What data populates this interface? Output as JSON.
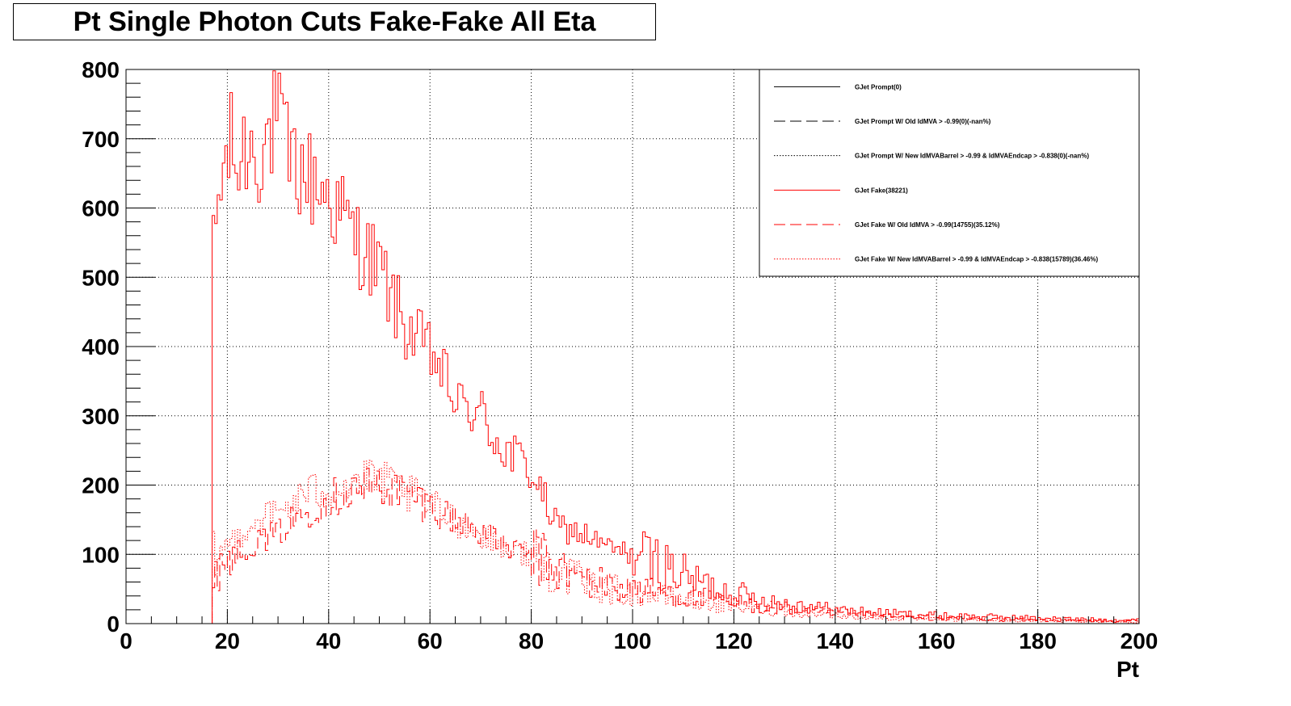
{
  "title": "Pt Single Photon Cuts Fake-Fake All Eta",
  "chart_data": {
    "type": "histogram-step",
    "title": "Pt Single Photon Cuts Fake-Fake All Eta",
    "xlabel": "Pt",
    "ylabel": "",
    "xlim": [
      0,
      200
    ],
    "ylim": [
      0,
      800
    ],
    "bin_width": 0.5,
    "x_ticks": [
      0,
      20,
      40,
      60,
      80,
      100,
      120,
      140,
      160,
      180,
      200
    ],
    "y_ticks": [
      0,
      100,
      200,
      300,
      400,
      500,
      600,
      700,
      800
    ],
    "grid": true,
    "legend_position": "top-right",
    "legend": [
      {
        "label": "GJet Prompt(0)",
        "color": "#000000",
        "dash": "solid"
      },
      {
        "label": "GJet Prompt W/ Old IdMVA > -0.99(0)(-nan%)",
        "color": "#000000",
        "dash": "dashed"
      },
      {
        "label": "GJet Prompt W/ New IdMVABarrel > -0.99 & IdMVAEndcap > -0.838(0)(-nan%)",
        "color": "#000000",
        "dash": "dotted"
      },
      {
        "label": "GJet Fake(38221)",
        "color": "#ff0000",
        "dash": "solid"
      },
      {
        "label": "GJet Fake W/ Old IdMVA > -0.99(14755)(35.12%)",
        "color": "#ff0000",
        "dash": "dashed"
      },
      {
        "label": "GJet Fake W/ New IdMVABarrel > -0.99 & IdMVAEndcap > -0.838(15789)(36.46%)",
        "color": "#ff0000",
        "dash": "dotted"
      }
    ],
    "series": [
      {
        "name": "GJet Fake(38221)",
        "color": "#ff0000",
        "dash": "solid",
        "x": [
          17,
          18,
          19,
          20,
          21,
          22,
          23,
          24,
          25,
          26,
          28,
          30,
          32,
          35,
          40,
          45,
          50,
          55,
          60,
          62,
          65,
          70,
          75,
          80,
          85,
          90,
          95,
          100,
          105,
          110,
          115,
          120,
          125,
          130,
          140,
          150,
          160,
          170,
          180,
          190,
          200
        ],
        "values": [
          510,
          600,
          640,
          680,
          690,
          650,
          680,
          690,
          690,
          680,
          700,
          730,
          670,
          650,
          620,
          560,
          510,
          430,
          390,
          370,
          320,
          300,
          250,
          220,
          140,
          130,
          110,
          100,
          90,
          70,
          55,
          45,
          35,
          30,
          20,
          15,
          12,
          10,
          8,
          6,
          5
        ]
      },
      {
        "name": "GJet Fake W/ Old IdMVA > -0.99(14755)(35.12%)",
        "color": "#ff0000",
        "dash": "dashed",
        "x": [
          17,
          20,
          25,
          30,
          35,
          40,
          45,
          50,
          55,
          60,
          65,
          70,
          75,
          80,
          85,
          90,
          95,
          100,
          105,
          110,
          115,
          120,
          130,
          140,
          150,
          160,
          170,
          180,
          190,
          200
        ],
        "values": [
          80,
          95,
          115,
          130,
          160,
          180,
          195,
          200,
          190,
          170,
          150,
          135,
          110,
          100,
          80,
          65,
          55,
          50,
          45,
          40,
          35,
          30,
          22,
          15,
          10,
          8,
          6,
          5,
          4,
          3
        ]
      },
      {
        "name": "GJet Fake W/ New IdMVABarrel > -0.99 & IdMVAEndcap > -0.838(15789)(36.46%)",
        "color": "#ff0000",
        "dash": "dotted",
        "x": [
          17,
          20,
          25,
          30,
          35,
          40,
          45,
          50,
          55,
          60,
          65,
          70,
          75,
          80,
          85,
          90,
          95,
          100,
          105,
          110,
          115,
          120,
          130,
          140,
          150,
          160,
          170,
          180,
          190,
          200
        ],
        "values": [
          90,
          115,
          145,
          160,
          185,
          195,
          205,
          205,
          190,
          170,
          150,
          130,
          110,
          95,
          75,
          60,
          50,
          45,
          40,
          35,
          30,
          25,
          18,
          12,
          8,
          6,
          5,
          4,
          3,
          2
        ]
      }
    ]
  }
}
